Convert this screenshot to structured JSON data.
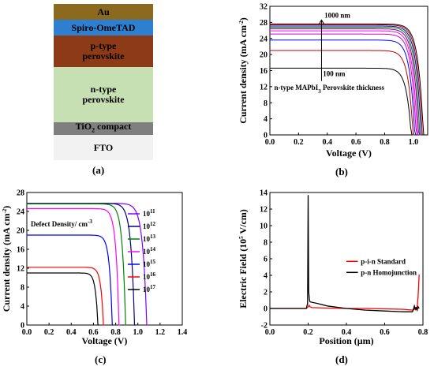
{
  "panels": {
    "a": {
      "label": "(a)",
      "layers": [
        {
          "lines": [
            "Au"
          ],
          "color": "#8b6a1f",
          "text_color": "#000000"
        },
        {
          "lines": [
            "Spiro-OmeTAD"
          ],
          "color": "#2e7fd0",
          "text_color": "#000000"
        },
        {
          "lines": [
            "p-type",
            "perovskite"
          ],
          "color": "#8d3a17",
          "text_color": "#000000"
        },
        {
          "lines": [
            "n-type",
            "perovskite"
          ],
          "color": "#c6e0b4",
          "text_color": "#000000"
        },
        {
          "lines": [
            "TiO",
            "2",
            " compact"
          ],
          "color": "#7f7f7f",
          "text_color": "#000000",
          "sub": true
        },
        {
          "lines": [
            "FTO"
          ],
          "color": "#f2f2f2",
          "text_color": "#000000"
        }
      ]
    },
    "b": {
      "label": "(b)",
      "annotation_top": "1000 nm",
      "annotation_bottom": "100 nm",
      "annotation_series": "n-type MAPbI",
      "annotation_series_sub": "3",
      "annotation_series_tail": " Perovskite thickness"
    },
    "c": {
      "label": "(c)",
      "legend_title": "Defect Density/ cm",
      "legend_title_sup": "-3"
    },
    "d": {
      "label": "(d)"
    }
  },
  "chart_data": [
    {
      "id": "b",
      "type": "line",
      "xlabel": "Voltage (V)",
      "ylabel": "Current density (mA cm",
      "ylabel_sup": "-2",
      "ylabel_tail": ")",
      "xlim": [
        0.0,
        1.1
      ],
      "ylim": [
        0,
        32
      ],
      "xticks": [
        "0.0",
        "0.2",
        "0.4",
        "0.6",
        "0.8",
        "1.0"
      ],
      "xtick_values": [
        0.0,
        0.2,
        0.4,
        0.6,
        0.8,
        1.0
      ],
      "yticks": [
        "0",
        "4",
        "8",
        "12",
        "16",
        "20",
        "24",
        "28",
        "32"
      ],
      "ytick_values": [
        0,
        4,
        8,
        12,
        16,
        20,
        24,
        28,
        32
      ],
      "series": [
        {
          "jsc": 27.6,
          "voc": 1.07,
          "color": "#000000"
        },
        {
          "jsc": 27.4,
          "voc": 1.062,
          "color": "#c00000"
        },
        {
          "jsc": 27.1,
          "voc": 1.054,
          "color": "#0000cc"
        },
        {
          "jsc": 26.8,
          "voc": 1.045,
          "color": "#008000"
        },
        {
          "jsc": 26.4,
          "voc": 1.037,
          "color": "#800080"
        },
        {
          "jsc": 25.9,
          "voc": 1.028,
          "color": "#ff00ff"
        },
        {
          "jsc": 25.1,
          "voc": 1.02,
          "color": "#cc00cc"
        },
        {
          "jsc": 23.6,
          "voc": 1.01,
          "color": "#0000ff"
        },
        {
          "jsc": 21.0,
          "voc": 0.998,
          "color": "#c00000"
        },
        {
          "jsc": 16.6,
          "voc": 0.985,
          "color": "#000000"
        }
      ]
    },
    {
      "id": "c",
      "type": "line",
      "xlabel": "Voltage (V)",
      "ylabel": "Current density (mA cm",
      "ylabel_sup": "-2",
      "ylabel_tail": ")",
      "xlim": [
        0.0,
        1.4
      ],
      "ylim": [
        0,
        28
      ],
      "xticks": [
        "0.0",
        "0.2",
        "0.4",
        "0.6",
        "0.8",
        "1.0",
        "1.2",
        "1.4"
      ],
      "xtick_values": [
        0.0,
        0.2,
        0.4,
        0.6,
        0.8,
        1.0,
        1.2,
        1.4
      ],
      "yticks": [
        "0",
        "4",
        "8",
        "12",
        "16",
        "20",
        "24",
        "28"
      ],
      "ytick_values": [
        0,
        4,
        8,
        12,
        16,
        20,
        24,
        28
      ],
      "series": [
        {
          "name": "10",
          "name_sup": "11",
          "jsc": 25.7,
          "voc": 1.08,
          "color": "#8000ff"
        },
        {
          "name": "10",
          "name_sup": "12",
          "jsc": 25.7,
          "voc": 0.97,
          "color": "#000080"
        },
        {
          "name": "10",
          "name_sup": "13",
          "jsc": 25.6,
          "voc": 0.89,
          "color": "#008000"
        },
        {
          "name": "10",
          "name_sup": "14",
          "jsc": 24.6,
          "voc": 0.83,
          "color": "#ff00ff"
        },
        {
          "name": "10",
          "name_sup": "15",
          "jsc": 19.0,
          "voc": 0.77,
          "color": "#0000ff"
        },
        {
          "name": "10",
          "name_sup": "16",
          "jsc": 12.2,
          "voc": 0.69,
          "color": "#ff0000"
        },
        {
          "name": "10",
          "name_sup": "17",
          "jsc": 11.0,
          "voc": 0.64,
          "color": "#000000"
        }
      ]
    },
    {
      "id": "d",
      "type": "line",
      "xlabel": "Position (",
      "xlabel_unit": "μm",
      "xlabel_tail": ")",
      "ylabel": "Electric Field (10",
      "ylabel_sup": "5",
      "ylabel_tail": " V/cm)",
      "xlim": [
        0.0,
        0.8
      ],
      "ylim": [
        -2,
        14
      ],
      "xticks": [
        "0.0",
        "0.2",
        "0.4",
        "0.6",
        "0.8"
      ],
      "xtick_values": [
        0.0,
        0.2,
        0.4,
        0.6,
        0.8
      ],
      "yticks": [
        "-2",
        "0",
        "2",
        "4",
        "6",
        "8",
        "10",
        "12",
        "14"
      ],
      "ytick_values": [
        -2,
        0,
        2,
        4,
        6,
        8,
        10,
        12,
        14
      ],
      "series": [
        {
          "name": "p-i-n Standard",
          "color": "#ff0000",
          "x": [
            0.0,
            0.19,
            0.2,
            0.205,
            0.21,
            0.22,
            0.3,
            0.4,
            0.5,
            0.6,
            0.7,
            0.75,
            0.76,
            0.765,
            0.77,
            0.775,
            0.78
          ],
          "y": [
            0.0,
            0.0,
            0.2,
            0.4,
            0.2,
            0.1,
            0.05,
            0.0,
            0.0,
            -0.05,
            -0.1,
            -0.2,
            0.1,
            -0.1,
            0.2,
            1.5,
            4.1
          ]
        },
        {
          "name": "p-n Homojunction",
          "color": "#000000",
          "x": [
            0.0,
            0.19,
            0.197,
            0.2,
            0.203,
            0.207,
            0.21,
            0.25,
            0.3,
            0.4,
            0.5,
            0.6,
            0.7,
            0.745,
            0.75,
            0.755,
            0.76,
            0.765,
            0.77,
            0.775,
            0.78
          ],
          "y": [
            0.0,
            0.0,
            0.6,
            13.7,
            2.0,
            1.0,
            0.8,
            0.6,
            0.3,
            0.0,
            -0.2,
            -0.3,
            -0.4,
            -0.4,
            -0.1,
            0.3,
            -0.1,
            0.1,
            -0.2,
            0.2,
            0.0
          ]
        }
      ]
    }
  ]
}
